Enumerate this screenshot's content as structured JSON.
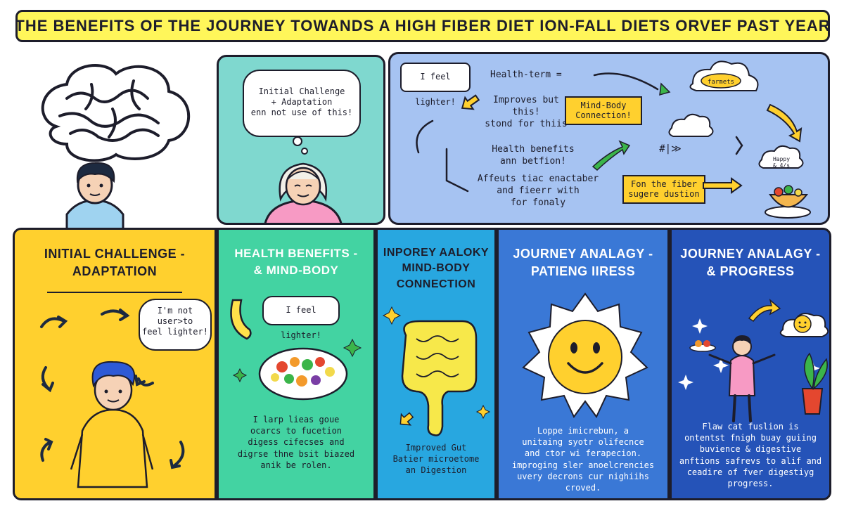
{
  "banner": {
    "title": "THE BENEFITS OF THE JOURNEY TOWANDS A HIGH FIBER DIET ION-FALL DIETS ORVEF PAST YEAR"
  },
  "top": {
    "thought_bubble": {
      "lines": [
        "Initial Challenge",
        "+ Adaptation",
        "enn not use of this!"
      ]
    },
    "mindmap": {
      "bubble": "I feel lighter!",
      "health_term": "Health-term =",
      "improves": [
        "Improves but",
        "this!",
        "stond for thiis"
      ],
      "health_benefits": [
        "Health benefits",
        "ann betfion!"
      ],
      "affects": [
        "Affeuts tiac enactaber",
        "and fieerr with",
        "for fonaly"
      ],
      "mind_body_box": [
        "Mind-Body",
        "Connection!"
      ],
      "fiber_box": [
        "Fon the fiber",
        "sugere dustion"
      ],
      "cloud_label": "farmets",
      "happy_label": [
        "Happy",
        "& 4/s"
      ],
      "hash": "#|≫"
    }
  },
  "columns": [
    {
      "title": [
        "INITIAL CHALLENGE -",
        "ADAPTATION"
      ],
      "bubble": [
        "I'm not",
        "user>to",
        "feel lighter!"
      ],
      "body": []
    },
    {
      "title": [
        "HEALTH BENEFITS -",
        "& MIND-BODY"
      ],
      "bubble": [
        "I feel lighter!"
      ],
      "body": [
        "I larp lieas goue",
        "ocarcs to fucetion",
        "digess cifecses and",
        "digrse thne bsit biazed",
        "anik be rolen."
      ]
    },
    {
      "title": [
        "INPOREY AALOKY",
        "MIND-BODY",
        "CONNECTION"
      ],
      "bubble": [],
      "body": [
        "Improved Gut",
        "Batier microetome",
        "an Digestion"
      ]
    },
    {
      "title": [
        "JOURNEY ANALAGY -",
        "PATIENG IIRESS"
      ],
      "bubble": [],
      "body": [
        "Loppe imicrebun, a",
        "unitaing syotr olifecnce",
        "and ctor wi ferapecion.",
        "improging sler anoelcrencies",
        "uvery decrons cur nighiihs croved."
      ]
    },
    {
      "title": [
        "JOURNEY ANALAGY -",
        "& PROGRESS"
      ],
      "bubble": [],
      "body": [
        "Flaw cat fuslion is",
        "ontentst fnigh buay guiing",
        "buvience & digestive",
        "anftions safrevs to alif and",
        "ceadire of fver digestiyg",
        "progress."
      ]
    }
  ],
  "colors": {
    "banner": "#fff65a",
    "ink": "#1d1d2b",
    "col1": "#ffd02e",
    "col2": "#43d3a2",
    "col3": "#28a7e0",
    "col4": "#3a78d6",
    "col5": "#2553b8",
    "teal_panel": "#7fd8cf",
    "blue_panel": "#a6c3f2"
  }
}
